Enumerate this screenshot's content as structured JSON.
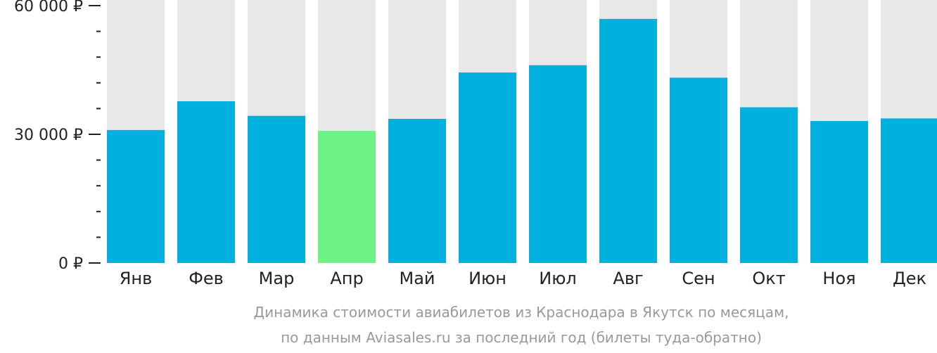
{
  "chart_data": {
    "type": "bar",
    "categories": [
      "Янв",
      "Фев",
      "Мар",
      "Апр",
      "Май",
      "Июн",
      "Июл",
      "Авг",
      "Сен",
      "Окт",
      "Ноя",
      "Дек"
    ],
    "values": [
      31000,
      37700,
      34300,
      30800,
      33600,
      44400,
      46100,
      56900,
      43200,
      36300,
      33100,
      33700
    ],
    "ylim": [
      0,
      60000
    ],
    "yticks": [
      {
        "value": 0,
        "label": "0 ₽"
      },
      {
        "value": 30000,
        "label": "30 000 ₽"
      },
      {
        "value": 60000,
        "label": "60 000 ₽"
      }
    ],
    "minor_tick_step": 6000,
    "highlight_index": 3,
    "colors": {
      "bar": "#00b0dd",
      "highlight": "#6cf285",
      "background_bar": "#e8e8e8",
      "axis": "#222222"
    },
    "caption": [
      "Динамика стоимости авиабилетов из Краснодара в Якутск по месяцам,",
      "по данным Aviasales.ru за последний год (билеты туда-обратно)"
    ]
  }
}
